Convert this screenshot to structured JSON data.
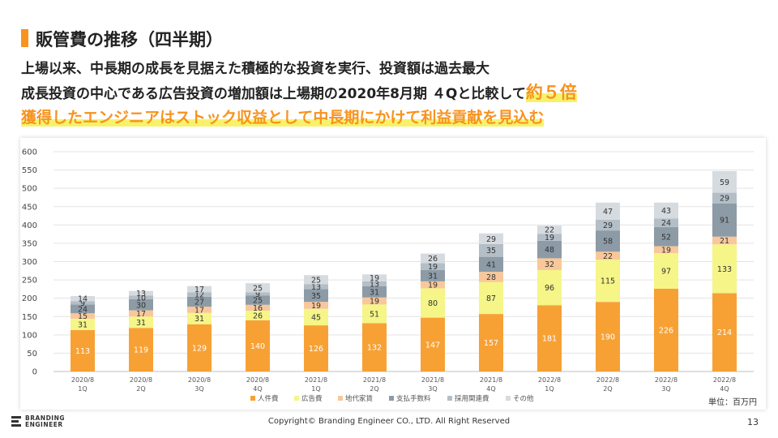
{
  "header": {
    "title": "販管費の推移（四半期）",
    "line1": "上場以来、中長期の成長を見据えた積極的な投資を実行、投資額は過去最大",
    "line2_main": "成長投資の中心である広告投資の増加額は上場期の2020年8月期  ４Qと比較して",
    "line2_emph": "約５倍",
    "line3": "獲得したエンジニアはストック収益として中長期にかけて利益貢献を見込む"
  },
  "chart_data": {
    "type": "bar",
    "stacked": true,
    "categories": [
      [
        "2020/8",
        "1Q"
      ],
      [
        "2020/8",
        "2Q"
      ],
      [
        "2020/8",
        "3Q"
      ],
      [
        "2020/8",
        "4Q"
      ],
      [
        "2021/8",
        "1Q"
      ],
      [
        "2021/8",
        "2Q"
      ],
      [
        "2021/8",
        "3Q"
      ],
      [
        "2021/8",
        "4Q"
      ],
      [
        "2022/8",
        "1Q"
      ],
      [
        "2022/8",
        "2Q"
      ],
      [
        "2022/8",
        "3Q"
      ],
      [
        "2022/8",
        "4Q"
      ]
    ],
    "series": [
      {
        "name": "人件費",
        "color": "#f7a135",
        "values": [
          113,
          119,
          129,
          140,
          126,
          132,
          147,
          157,
          181,
          190,
          226,
          214
        ]
      },
      {
        "name": "広告費",
        "color": "#f5f588",
        "values": [
          31,
          31,
          31,
          26,
          45,
          51,
          80,
          87,
          96,
          115,
          97,
          133
        ]
      },
      {
        "name": "地代家賃",
        "color": "#f8c89a",
        "values": [
          15,
          17,
          17,
          16,
          19,
          19,
          19,
          28,
          32,
          22,
          19,
          21
        ]
      },
      {
        "name": "支払手数料",
        "color": "#8d9ba7",
        "values": [
          24,
          30,
          27,
          25,
          35,
          31,
          31,
          41,
          48,
          58,
          52,
          91
        ]
      },
      {
        "name": "採用関連費",
        "color": "#b4bec7",
        "values": [
          9,
          10,
          12,
          9,
          13,
          13,
          19,
          35,
          19,
          29,
          24,
          29
        ]
      },
      {
        "name": "その他",
        "color": "#d6dbe0",
        "values": [
          14,
          13,
          17,
          25,
          25,
          19,
          26,
          29,
          22,
          47,
          43,
          59
        ]
      }
    ],
    "ylim": [
      0,
      600
    ],
    "yticks": [
      0,
      50,
      100,
      150,
      200,
      250,
      300,
      350,
      400,
      450,
      500,
      550,
      600
    ],
    "grid": true,
    "legend": "bottom",
    "unit_label": "単位：百万円"
  },
  "footer": {
    "logo_line1": "BRANDING",
    "logo_line2": "ENGINEER",
    "copyright": "Copyright© Branding Engineer CO., LTD. All Right Reserved",
    "page_number": "13"
  }
}
